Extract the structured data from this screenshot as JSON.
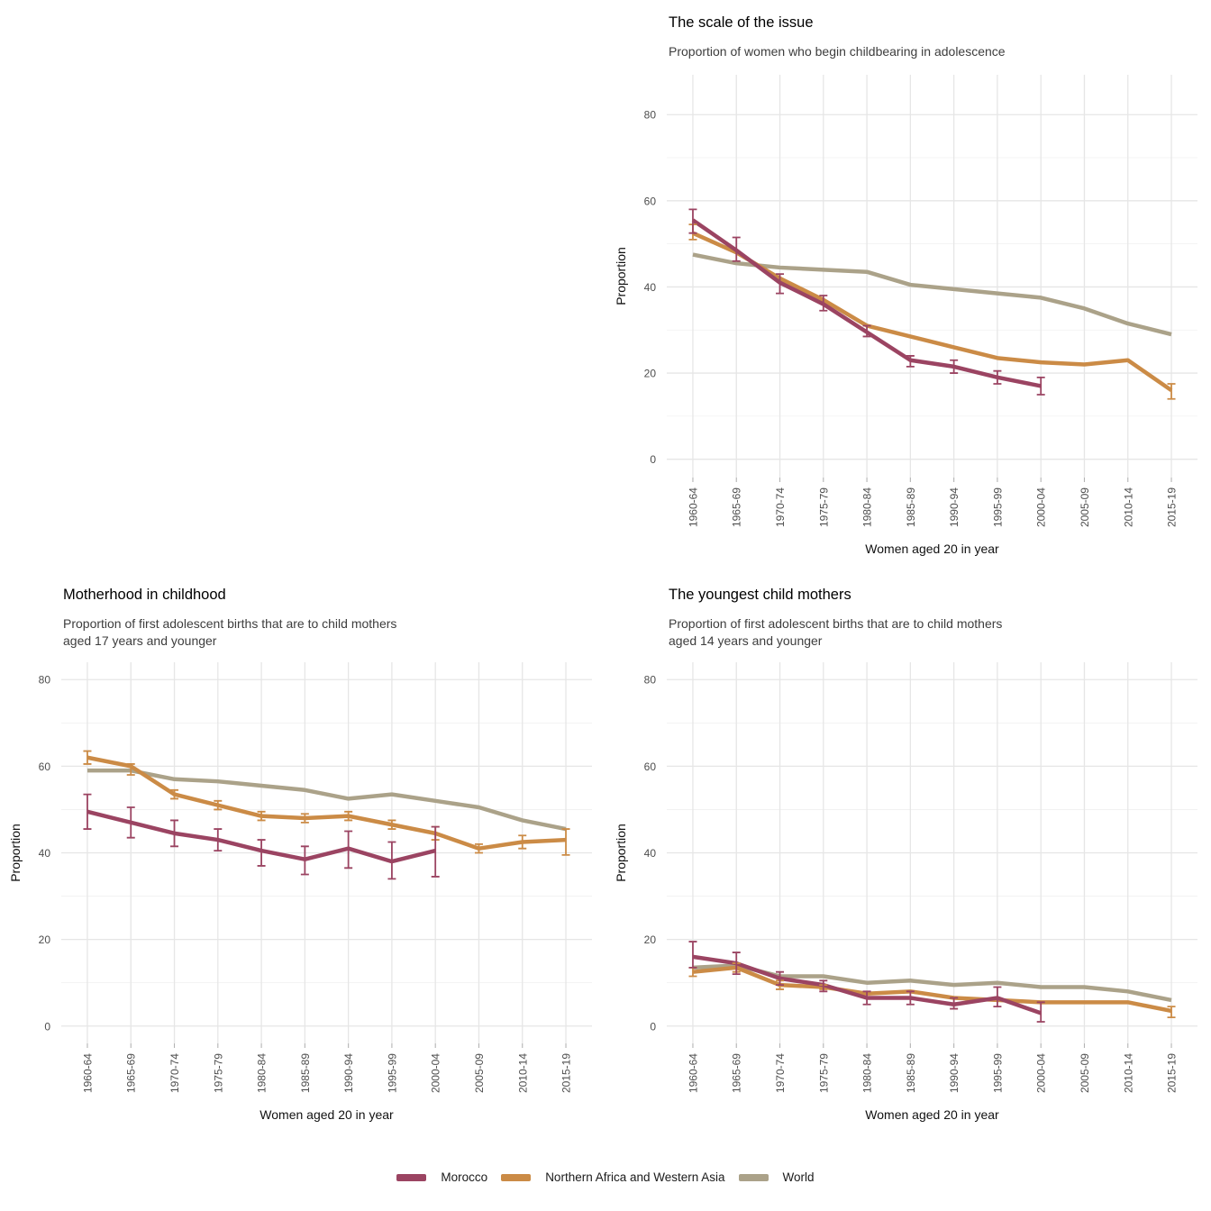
{
  "legend": {
    "items": [
      {
        "label": "Morocco",
        "color": "#9b4462"
      },
      {
        "label": "Northern Africa and Western Asia",
        "color": "#cb8b46"
      },
      {
        "label": "World",
        "color": "#aba289"
      }
    ]
  },
  "chart_data": [
    {
      "id": "scale-of-the-issue",
      "type": "line",
      "title": "The scale of the issue",
      "subtitle": "Proportion of women who begin childbearing in adolescence",
      "xlabel": "Women aged 20 in year",
      "ylabel": "Proportion",
      "ylim": [
        0,
        85
      ],
      "y_ticks": [
        0,
        20,
        40,
        60,
        80
      ],
      "grid": "major-and-minor",
      "legend_position": "bottom-shared",
      "categories": [
        "1960-64",
        "1965-69",
        "1970-74",
        "1975-79",
        "1980-84",
        "1985-89",
        "1990-94",
        "1995-99",
        "2000-04",
        "2005-09",
        "2010-14",
        "2015-19"
      ],
      "series": [
        {
          "name": "Morocco",
          "color": "#9b4462",
          "values": [
            55.5,
            48.5,
            41,
            36,
            29.5,
            23,
            21.5,
            19,
            17,
            null,
            null,
            null
          ],
          "errors": [
            [
              52.5,
              58
            ],
            [
              46,
              51.5
            ],
            [
              38.5,
              43
            ],
            [
              34.5,
              38
            ],
            [
              28.5,
              31
            ],
            [
              21.5,
              24
            ],
            [
              20,
              23
            ],
            [
              17.5,
              20.5
            ],
            [
              15,
              19
            ],
            null,
            null,
            null
          ]
        },
        {
          "name": "Northern Africa and Western Asia",
          "color": "#cb8b46",
          "values": [
            52.5,
            48,
            42,
            37,
            31,
            28.5,
            26,
            23.5,
            22.5,
            22,
            23,
            16
          ],
          "errors": [
            [
              51,
              54.5
            ],
            null,
            null,
            null,
            null,
            null,
            null,
            null,
            null,
            null,
            null,
            [
              14,
              17.5
            ]
          ]
        },
        {
          "name": "World",
          "color": "#aba289",
          "values": [
            47.5,
            45.5,
            44.5,
            44,
            43.5,
            40.5,
            39.5,
            38.5,
            37.5,
            35,
            31.5,
            29
          ],
          "errors": null
        }
      ]
    },
    {
      "id": "motherhood-in-childhood",
      "type": "line",
      "title": "Motherhood in childhood",
      "subtitle": "Proportion of first adolescent births that are to child mothers\naged 17 years and younger",
      "xlabel": "Women aged 20 in year",
      "ylabel": "Proportion",
      "ylim": [
        0,
        80
      ],
      "y_ticks": [
        0,
        20,
        40,
        60,
        80
      ],
      "grid": "major-and-minor",
      "legend_position": "bottom-shared",
      "categories": [
        "1960-64",
        "1965-69",
        "1970-74",
        "1975-79",
        "1980-84",
        "1985-89",
        "1990-94",
        "1995-99",
        "2000-04",
        "2005-09",
        "2010-14",
        "2015-19"
      ],
      "series": [
        {
          "name": "Morocco",
          "color": "#9b4462",
          "values": [
            49.5,
            47,
            44.5,
            43,
            40.5,
            38.5,
            41,
            38,
            40.5,
            null,
            null,
            null
          ],
          "errors": [
            [
              45.5,
              53.5
            ],
            [
              43.5,
              50.5
            ],
            [
              41.5,
              47.5
            ],
            [
              40.5,
              45.5
            ],
            [
              37,
              43
            ],
            [
              35,
              41.5
            ],
            [
              36.5,
              45
            ],
            [
              34,
              42.5
            ],
            [
              34.5,
              46
            ],
            null,
            null,
            null
          ]
        },
        {
          "name": "Northern Africa and Western Asia",
          "color": "#cb8b46",
          "values": [
            62,
            60,
            53.5,
            51,
            48.5,
            48,
            48.5,
            46.5,
            44.5,
            41,
            42.5,
            43
          ],
          "errors": [
            [
              60.5,
              63.5
            ],
            [
              58,
              60.5
            ],
            [
              52.5,
              54.5
            ],
            [
              50,
              52
            ],
            [
              47.5,
              49.5
            ],
            [
              47,
              49
            ],
            [
              47.5,
              49.5
            ],
            [
              45.5,
              47.5
            ],
            [
              43,
              46
            ],
            [
              40,
              42
            ],
            [
              41,
              44
            ],
            [
              39.5,
              45.5
            ]
          ]
        },
        {
          "name": "World",
          "color": "#aba289",
          "values": [
            59,
            59,
            57,
            56.5,
            55.5,
            54.5,
            52.5,
            53.5,
            52,
            50.5,
            47.5,
            45.5
          ],
          "errors": null
        }
      ]
    },
    {
      "id": "youngest-child-mothers",
      "type": "line",
      "title": "The youngest child mothers",
      "subtitle": "Proportion of first adolescent births that are to child mothers\naged 14 years and younger",
      "xlabel": "Women aged 20 in year",
      "ylabel": "Proportion",
      "ylim": [
        0,
        80
      ],
      "y_ticks": [
        0,
        20,
        40,
        60,
        80
      ],
      "grid": "major-and-minor",
      "legend_position": "bottom-shared",
      "categories": [
        "1960-64",
        "1965-69",
        "1970-74",
        "1975-79",
        "1980-84",
        "1985-89",
        "1990-94",
        "1995-99",
        "2000-04",
        "2005-09",
        "2010-14",
        "2015-19"
      ],
      "series": [
        {
          "name": "Morocco",
          "color": "#9b4462",
          "values": [
            16,
            14.5,
            11,
            9.5,
            6.5,
            6.5,
            5,
            6.5,
            3,
            null,
            null,
            null
          ],
          "errors": [
            [
              13.5,
              19.5
            ],
            [
              12,
              17
            ],
            [
              9.5,
              12.5
            ],
            [
              8,
              10.5
            ],
            [
              5,
              8
            ],
            [
              5,
              8
            ],
            [
              4,
              6.5
            ],
            [
              4.5,
              9
            ],
            [
              1,
              5.5
            ],
            null,
            null,
            null
          ]
        },
        {
          "name": "Northern Africa and Western Asia",
          "color": "#cb8b46",
          "values": [
            12.5,
            13.5,
            9.5,
            9,
            7.5,
            8,
            6.5,
            6,
            5.5,
            5.5,
            5.5,
            3.5
          ],
          "errors": [
            [
              11.5,
              13.5
            ],
            [
              12.5,
              14.5
            ],
            [
              8.5,
              10.5
            ],
            [
              8.5,
              9.5
            ],
            null,
            null,
            null,
            null,
            null,
            null,
            null,
            [
              2,
              4.5
            ]
          ]
        },
        {
          "name": "World",
          "color": "#aba289",
          "values": [
            13.5,
            14,
            11.5,
            11.5,
            10,
            10.5,
            9.5,
            10,
            9,
            9,
            8,
            6
          ],
          "errors": null
        }
      ]
    }
  ]
}
